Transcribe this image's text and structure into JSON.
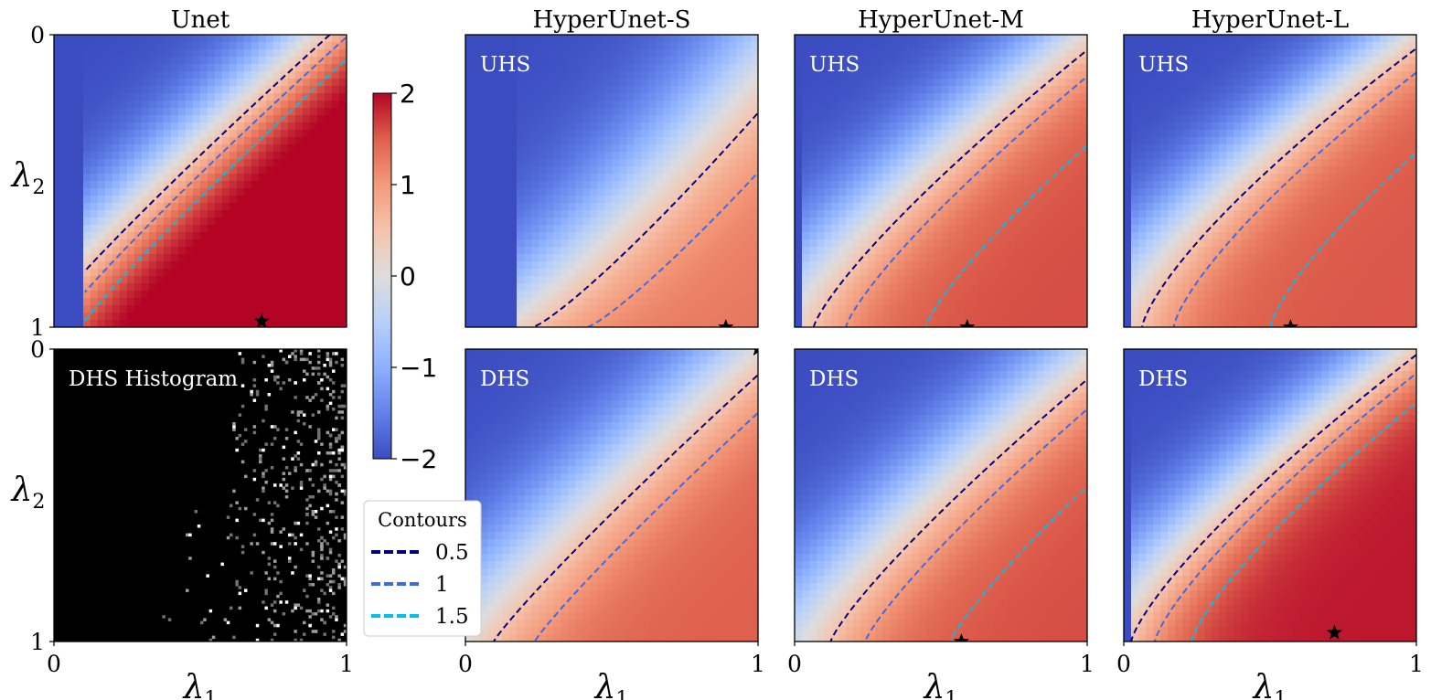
{
  "chart_data": [
    {
      "type": "heatmap",
      "id": "unet",
      "title": "Unet",
      "inner_label": "",
      "xlabel": "",
      "ylabel": "λ2",
      "xlim": [
        0,
        1
      ],
      "ylim": [
        0,
        1
      ],
      "vmin": -2,
      "vmax": 2,
      "ticks": {
        "x": [],
        "y": [
          "0",
          "1"
        ]
      },
      "field": {
        "k": 0.9,
        "gamma": 1.1,
        "rise": 0.13,
        "cutoff": 0.1,
        "range": [
          -2,
          2.3
        ]
      },
      "star": [
        0.71,
        0.98
      ]
    },
    {
      "type": "heatmap",
      "id": "hs-uhs",
      "title": "HyperUnet-S",
      "inner_label": "UHS",
      "xlim": [
        0,
        1
      ],
      "ylim": [
        0,
        1
      ],
      "vmin": -2,
      "vmax": 2,
      "field": {
        "k": 1.05,
        "gamma": 0.85,
        "rise": 0.16,
        "cutoff": 0.18,
        "range": [
          -2,
          1.3
        ]
      },
      "star": [
        0.89,
        1.0
      ]
    },
    {
      "type": "heatmap",
      "id": "hm-uhs",
      "title": "HyperUnet-M",
      "inner_label": "UHS",
      "xlim": [
        0,
        1
      ],
      "ylim": [
        0,
        1
      ],
      "vmin": -2,
      "vmax": 2,
      "field": {
        "k": 0.95,
        "gamma": 1.25,
        "rise": 0.14,
        "cutoff": 0.02,
        "range": [
          -2,
          1.6
        ]
      },
      "star": [
        0.59,
        1.0
      ]
    },
    {
      "type": "heatmap",
      "id": "hl-uhs",
      "title": "HyperUnet-L",
      "inner_label": "UHS",
      "xlim": [
        0,
        1
      ],
      "ylim": [
        0,
        1
      ],
      "vmin": -2,
      "vmax": 2,
      "field": {
        "k": 0.95,
        "gamma": 1.35,
        "rise": 0.13,
        "cutoff": 0.03,
        "range": [
          -2,
          1.55
        ]
      },
      "star": [
        0.57,
        1.0
      ]
    },
    {
      "type": "heatmap",
      "id": "dhs-hist",
      "title": "",
      "inner_label": "DHS Histogram",
      "histogram": true,
      "xlabel": "λ1",
      "ylabel": "λ2",
      "xlim": [
        0,
        1
      ],
      "ylim": [
        0,
        1
      ],
      "ticks": {
        "x": [
          "0",
          "1"
        ],
        "y": [
          "0",
          "1"
        ]
      }
    },
    {
      "type": "heatmap",
      "id": "hs-dhs",
      "title": "",
      "inner_label": "DHS",
      "xlabel": "λ1",
      "xlim": [
        0,
        1
      ],
      "ylim": [
        0,
        1
      ],
      "vmin": -2,
      "vmax": 2,
      "ticks": {
        "x": [
          "0",
          "1"
        ],
        "y": []
      },
      "field": {
        "k": 0.95,
        "gamma": 1.1,
        "rise": 0.16,
        "cutoff": 0.0,
        "range": [
          -2,
          1.5
        ]
      },
      "star": [
        1.0,
        0.0
      ]
    },
    {
      "type": "heatmap",
      "id": "hm-dhs",
      "title": "",
      "inner_label": "DHS",
      "xlabel": "λ1",
      "xlim": [
        0,
        1
      ],
      "ylim": [
        0,
        1
      ],
      "vmin": -2,
      "vmax": 2,
      "ticks": {
        "x": [
          "0",
          "1"
        ],
        "y": []
      },
      "field": {
        "k": 1.0,
        "gamma": 1.2,
        "rise": 0.15,
        "cutoff": 0.0,
        "range": [
          -2,
          1.6
        ]
      },
      "star": [
        0.57,
        1.0
      ]
    },
    {
      "type": "heatmap",
      "id": "hl-dhs",
      "title": "",
      "inner_label": "DHS",
      "xlabel": "λ1",
      "xlim": [
        0,
        1
      ],
      "ylim": [
        0,
        1
      ],
      "vmin": -2,
      "vmax": 2,
      "ticks": {
        "x": [
          "0",
          "1"
        ],
        "y": []
      },
      "field": {
        "k": 0.95,
        "gamma": 1.3,
        "rise": 0.13,
        "cutoff": 0.02,
        "range": [
          -2,
          1.9
        ]
      },
      "star": [
        0.72,
        0.97
      ]
    }
  ],
  "colorbar": {
    "ticks": [
      2,
      1,
      0,
      -1,
      -2
    ],
    "tick_labels": [
      "2",
      "1",
      "0",
      "−1",
      "−2"
    ],
    "cmap": "coolwarm"
  },
  "legend": {
    "title": "Contours",
    "placement": "lower-center",
    "entries": [
      {
        "label": "0.5",
        "level": 0.5,
        "color": "#000080"
      },
      {
        "label": "1",
        "level": 1,
        "color": "#4169e1"
      },
      {
        "label": "1.5",
        "level": 1.5,
        "color": "#00bfef"
      }
    ]
  }
}
